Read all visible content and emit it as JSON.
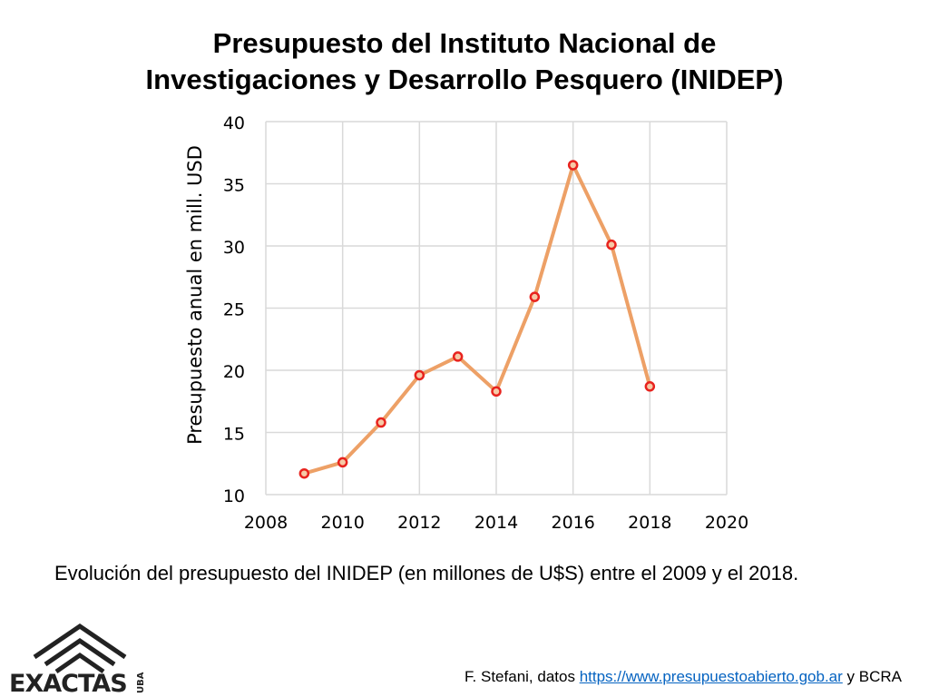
{
  "title_line1": "Presupuesto del Instituto Nacional de",
  "title_line2": "Investigaciones y Desarrollo Pesquero (INIDEP)",
  "caption": "Evolución del presupuesto del INIDEP (en millones de U$S) entre el 2009 y el 2018.",
  "source": {
    "prefix": "F. Stefani, datos ",
    "link": "https://www.presupuestoabierto.gob.ar",
    "suffix": " y BCRA"
  },
  "logo": {
    "main": "EXACTAS",
    "side": "UBA"
  },
  "chart_data": {
    "type": "line",
    "ylabel": "Presupuesto anual en mill. USD",
    "xlim": [
      2008,
      2020
    ],
    "ylim": [
      10,
      40
    ],
    "xticks": [
      2008,
      2010,
      2012,
      2014,
      2016,
      2018,
      2020
    ],
    "yticks": [
      10,
      15,
      20,
      25,
      30,
      35,
      40
    ],
    "grid": true,
    "line_color": "#eda066",
    "marker_color": "#e8231e",
    "series": [
      {
        "x": [
          2009,
          2010,
          2011,
          2012,
          2013,
          2014,
          2015,
          2016,
          2017,
          2018
        ],
        "y": [
          11.7,
          12.6,
          15.8,
          19.6,
          21.1,
          18.3,
          25.9,
          36.5,
          30.1,
          18.7
        ]
      }
    ]
  }
}
